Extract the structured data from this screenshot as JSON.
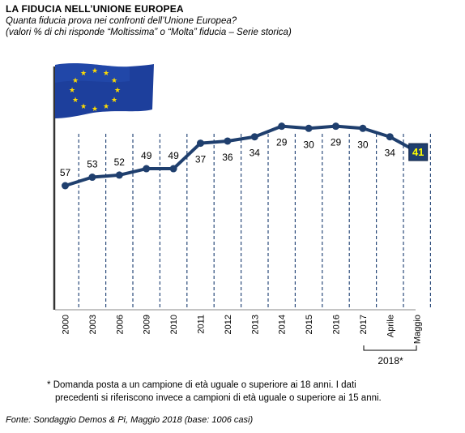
{
  "header": {
    "title": "LA FIDUCIA NELL’UNIONE EUROPEA",
    "subtitle": "Quanta fiducia prova nei confronti dell’Unione Europea?",
    "note": "(valori % di chi risponde “Moltissima” o “Molta” fiducia – Serie storica)"
  },
  "chart_data": {
    "type": "line",
    "categories": [
      "2000",
      "2003",
      "2006",
      "2009",
      "2010",
      "2011",
      "2012",
      "2013",
      "2014",
      "2015",
      "2016",
      "2017",
      "Aprile",
      "Maggio"
    ],
    "values": [
      57,
      53,
      52,
      49,
      49,
      37,
      36,
      34,
      29,
      30,
      29,
      30,
      34,
      41
    ],
    "group_label": "2018*",
    "highlight_last": true,
    "grid": "vertical dashed",
    "colors": {
      "line": "#1f3f6e",
      "highlight_box": "#1f3f6e",
      "highlight_text": "#ffff00",
      "grid": "#2a4a7a"
    }
  },
  "footer": {
    "footnote_line1": "Domanda posta a un campione di età uguale o superiore ai 18 anni. I dati",
    "footnote_line2": "precedenti si riferiscono invece a campioni di età uguale o superiore ai 15 anni.",
    "footnote_marker": "*",
    "source": "Fonte: Sondaggio Demos & Pi, Maggio 2018 (base: 1006 casi)"
  }
}
